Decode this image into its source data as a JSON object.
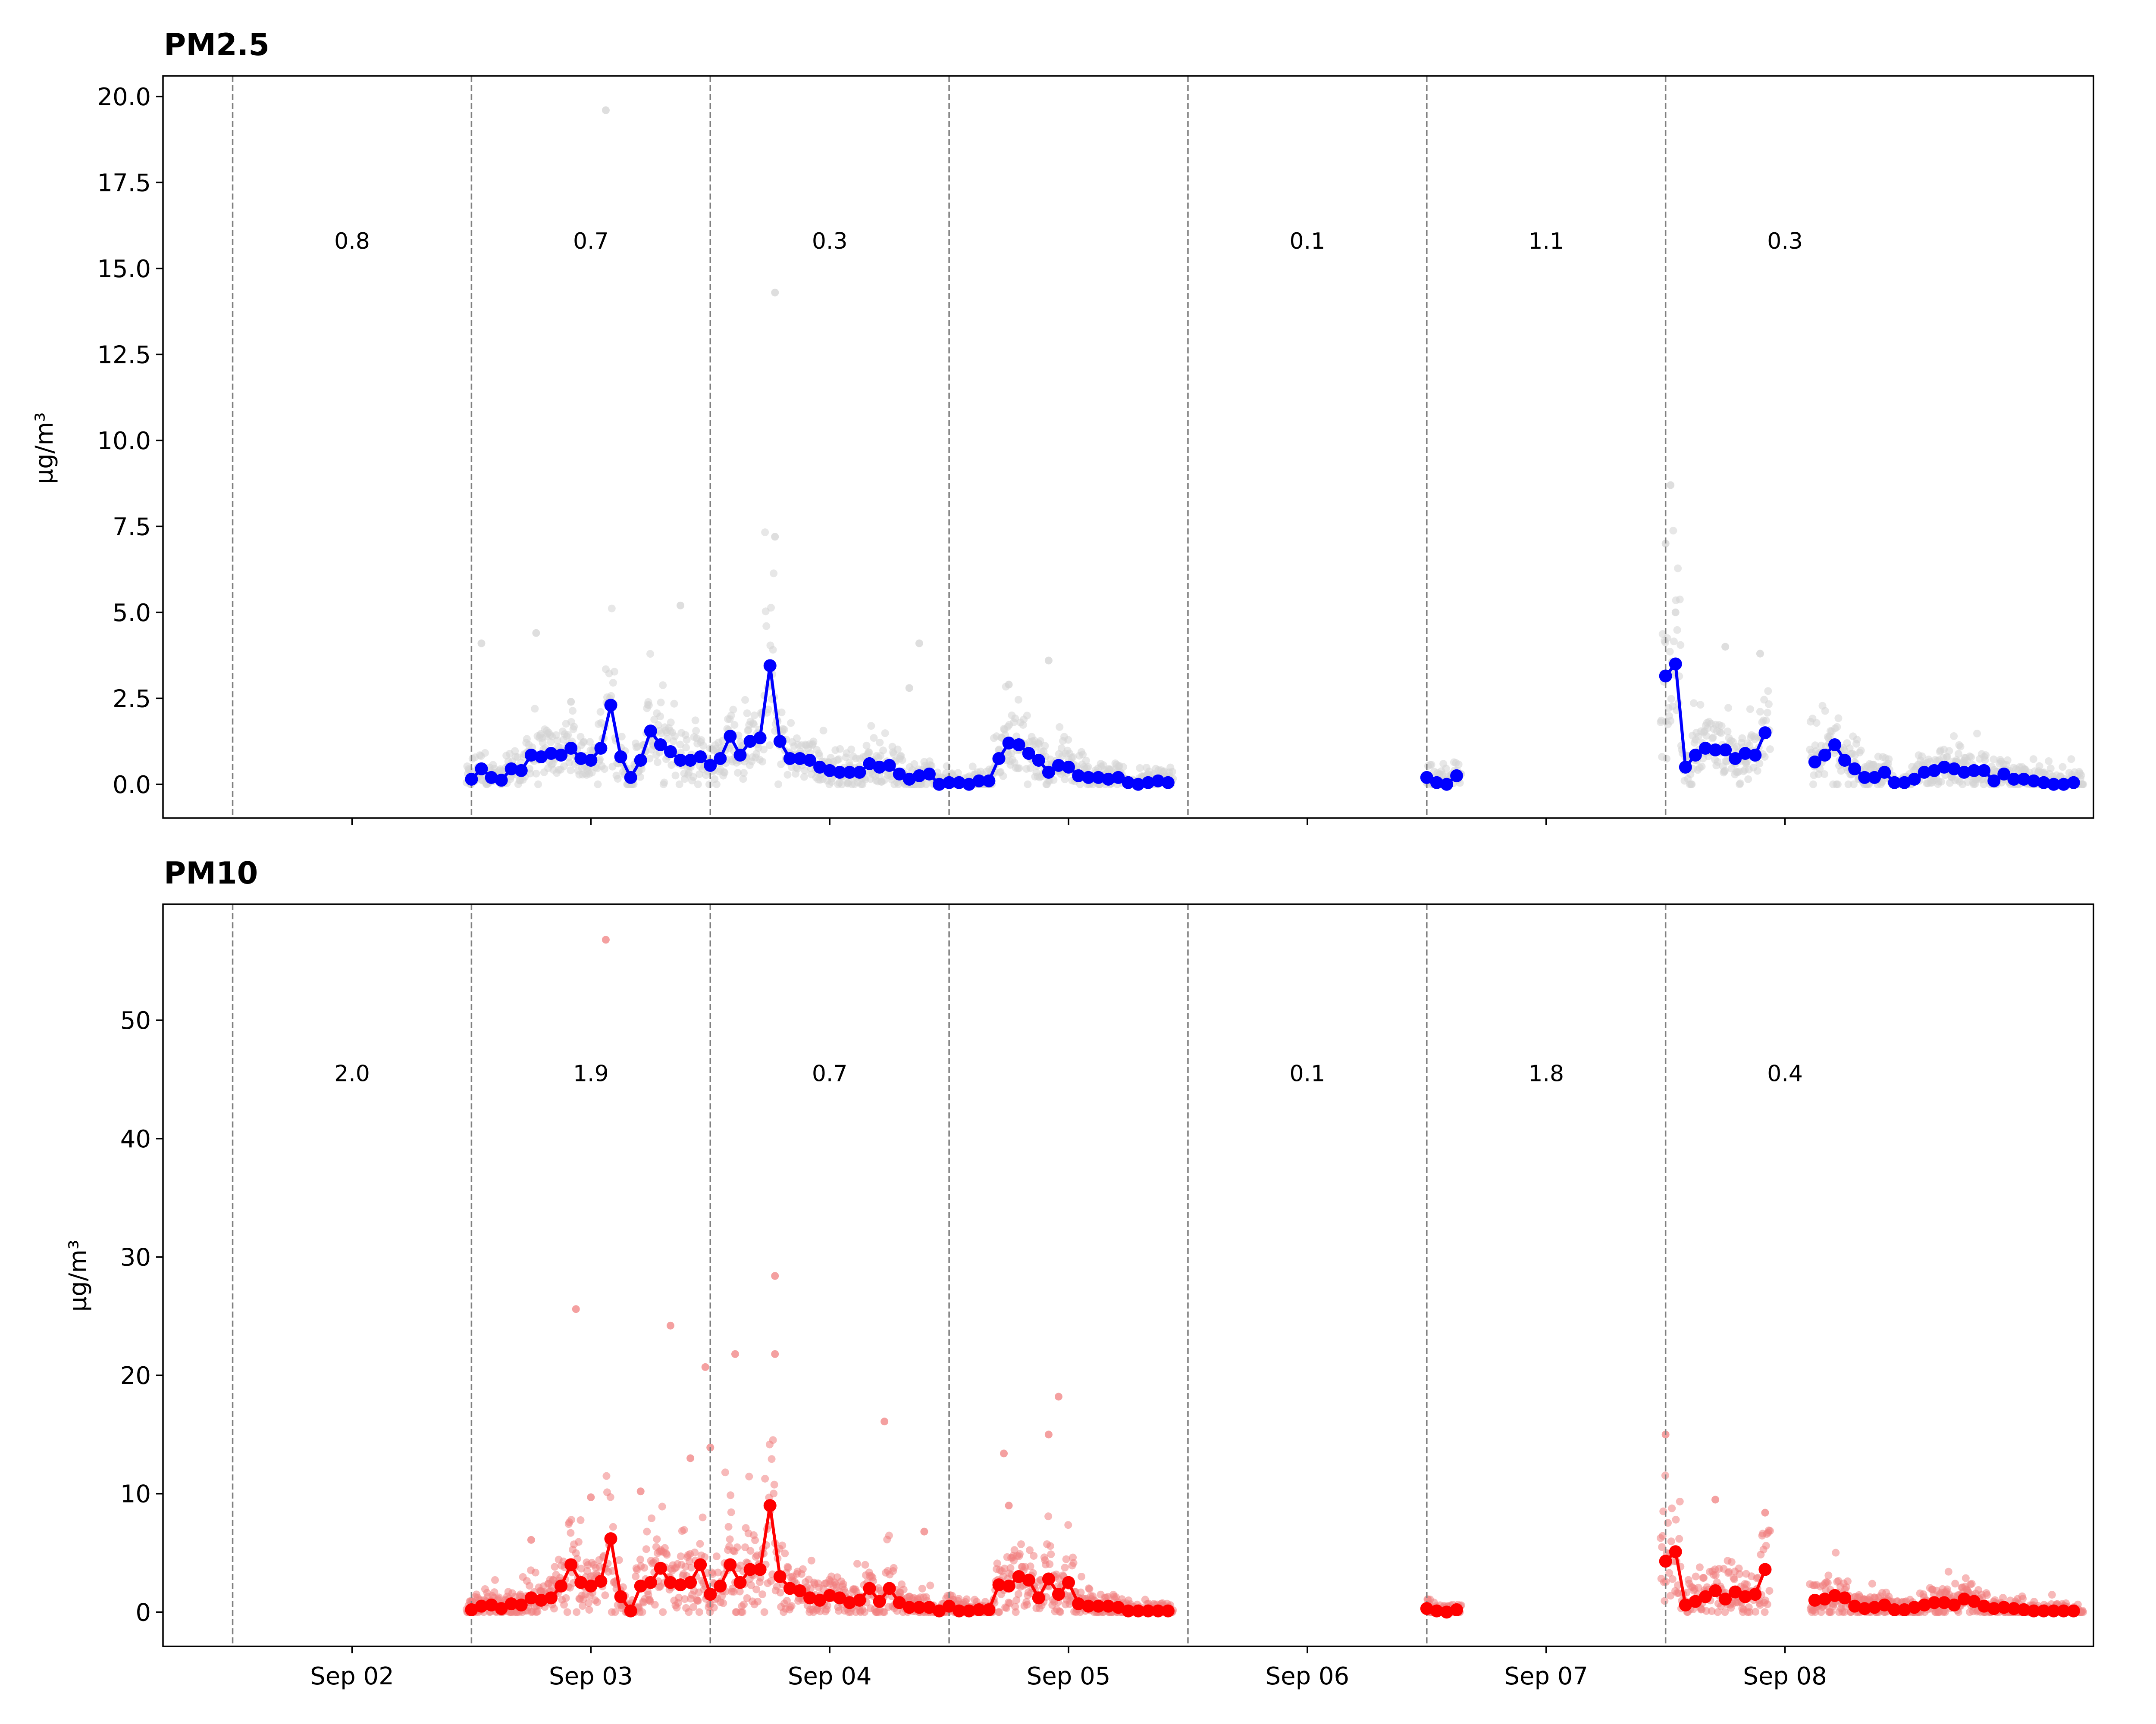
{
  "chart_data": [
    {
      "type": "line",
      "title": "PM2.5",
      "ylabel": "µg/m³",
      "ylim": [
        -0.98,
        20.6
      ],
      "yticks": [
        "0.0",
        "2.5",
        "5.0",
        "7.5",
        "10.0",
        "12.5",
        "15.0",
        "17.5",
        "20.0"
      ],
      "xlim": [
        "2023-09-01 05:00",
        "2023-09-08 23:00"
      ],
      "x_unit": "hour of day from Sep 01 00:00",
      "xticks": [
        "Sep 02",
        "Sep 03",
        "Sep 04",
        "Sep 05",
        "Sep 06",
        "Sep 07",
        "Sep 08"
      ],
      "day_boundaries": [
        "Sep 01 12:00",
        "Sep 02 12:00",
        "Sep 03 12:00",
        "Sep 04 12:00",
        "Sep 05 12:00",
        "Sep 06 12:00",
        "Sep 07 12:00"
      ],
      "daily_means": [
        {
          "at": "Sep 02",
          "label": "0.8"
        },
        {
          "at": "Sep 03",
          "label": "0.7"
        },
        {
          "at": "Sep 04",
          "label": "0.3"
        },
        {
          "at": "Sep 06",
          "label": "0.1"
        },
        {
          "at": "Sep 07",
          "label": "1.1"
        },
        {
          "at": "Sep 08",
          "label": "0.3"
        }
      ],
      "annotation_y": 15.8,
      "line_color": "#0000ff",
      "scatter_color": "#d3d3d3",
      "hourly": [
        [
          36,
          0.15
        ],
        [
          37,
          0.45
        ],
        [
          38,
          0.2
        ],
        [
          39,
          0.12
        ],
        [
          40,
          0.45
        ],
        [
          41,
          0.4
        ],
        [
          42,
          0.85
        ],
        [
          43,
          0.8
        ],
        [
          44,
          0.9
        ],
        [
          45,
          0.85
        ],
        [
          46,
          1.05
        ],
        [
          47,
          0.75
        ],
        [
          48,
          0.7
        ],
        [
          49,
          1.05
        ],
        [
          50,
          2.3
        ],
        [
          51,
          0.8
        ],
        [
          52,
          0.2
        ],
        [
          53,
          0.7
        ],
        [
          54,
          1.55
        ],
        [
          55,
          1.15
        ],
        [
          56,
          0.95
        ],
        [
          57,
          0.7
        ],
        [
          58,
          0.7
        ],
        [
          59,
          0.8
        ],
        [
          60,
          0.55
        ],
        [
          61,
          0.75
        ],
        [
          62,
          1.4
        ],
        [
          63,
          0.85
        ],
        [
          64,
          1.25
        ],
        [
          65,
          1.35
        ],
        [
          66,
          3.45
        ],
        [
          67,
          1.25
        ],
        [
          68,
          0.75
        ],
        [
          69,
          0.75
        ],
        [
          70,
          0.7
        ],
        [
          71,
          0.5
        ],
        [
          72,
          0.4
        ],
        [
          73,
          0.35
        ],
        [
          74,
          0.35
        ],
        [
          75,
          0.35
        ],
        [
          76,
          0.6
        ],
        [
          77,
          0.5
        ],
        [
          78,
          0.55
        ],
        [
          79,
          0.3
        ],
        [
          80,
          0.15
        ],
        [
          81,
          0.25
        ],
        [
          82,
          0.3
        ],
        [
          83,
          0.0
        ],
        [
          84,
          0.05
        ],
        [
          85,
          0.05
        ],
        [
          86,
          0.0
        ],
        [
          87,
          0.1
        ],
        [
          88,
          0.1
        ],
        [
          89,
          0.75
        ],
        [
          90,
          1.2
        ],
        [
          91,
          1.15
        ],
        [
          92,
          0.9
        ],
        [
          93,
          0.7
        ],
        [
          94,
          0.35
        ],
        [
          95,
          0.55
        ],
        [
          96,
          0.5
        ],
        [
          97,
          0.25
        ],
        [
          98,
          0.2
        ],
        [
          99,
          0.2
        ],
        [
          100,
          0.15
        ],
        [
          101,
          0.2
        ],
        [
          102,
          0.05
        ],
        [
          103,
          0.0
        ],
        [
          104,
          0.05
        ],
        [
          105,
          0.1
        ],
        [
          106,
          0.05
        ],
        null,
        [
          132,
          0.2
        ],
        [
          133,
          0.05
        ],
        [
          134,
          0.0
        ],
        [
          135,
          0.25
        ],
        null,
        [
          156,
          3.15
        ],
        [
          157,
          3.5
        ],
        [
          158,
          0.5
        ],
        [
          159,
          0.85
        ],
        [
          160,
          1.05
        ],
        [
          161,
          1.0
        ],
        [
          162,
          1.0
        ],
        [
          163,
          0.75
        ],
        [
          164,
          0.9
        ],
        [
          165,
          0.85
        ],
        [
          166,
          1.5
        ],
        null,
        [
          171,
          0.65
        ],
        [
          172,
          0.85
        ],
        [
          173,
          1.15
        ],
        [
          174,
          0.7
        ],
        [
          175,
          0.45
        ],
        [
          176,
          0.2
        ],
        [
          177,
          0.2
        ],
        [
          178,
          0.35
        ],
        [
          179,
          0.05
        ],
        [
          180,
          0.05
        ],
        [
          181,
          0.15
        ],
        [
          182,
          0.35
        ],
        [
          183,
          0.4
        ],
        [
          184,
          0.5
        ],
        [
          185,
          0.45
        ],
        [
          186,
          0.35
        ],
        [
          187,
          0.4
        ],
        [
          188,
          0.4
        ],
        [
          189,
          0.1
        ],
        [
          190,
          0.3
        ],
        [
          191,
          0.15
        ],
        [
          192,
          0.15
        ],
        [
          193,
          0.1
        ],
        [
          194,
          0.05
        ],
        [
          195,
          0.0
        ],
        [
          196,
          0.0
        ],
        [
          197,
          0.05
        ]
      ],
      "scatter_peaks": [
        [
          49.5,
          19.6
        ],
        [
          66.5,
          14.3
        ],
        [
          66.5,
          7.2
        ],
        [
          57,
          5.2
        ],
        [
          42.5,
          4.4
        ],
        [
          37,
          4.1
        ],
        [
          81,
          4.1
        ],
        [
          156.5,
          8.7
        ],
        [
          156,
          7.0
        ],
        [
          157,
          5.0
        ],
        [
          94,
          3.6
        ],
        [
          162,
          4.0
        ],
        [
          165.5,
          3.8
        ],
        [
          90,
          2.9
        ],
        [
          46,
          2.4
        ],
        [
          80,
          2.8
        ]
      ],
      "scatter_spread": {
        "segments": [
          [
            35.5,
            106.5
          ],
          [
            132,
            135.5
          ],
          [
            155.5,
            166.5
          ],
          [
            170.5,
            198
          ]
        ],
        "per_hour": 15,
        "jitter_scale": 1.4,
        "floor": 0
      }
    },
    {
      "type": "line",
      "title": "PM10",
      "ylabel": "µg/m³",
      "ylim": [
        -2.9,
        59.8
      ],
      "yticks": [
        "0",
        "10",
        "20",
        "30",
        "40",
        "50"
      ],
      "xlim": [
        "2023-09-01 05:00",
        "2023-09-08 23:00"
      ],
      "x_unit": "hour of day from Sep 01 00:00",
      "xticks": [
        "Sep 02",
        "Sep 03",
        "Sep 04",
        "Sep 05",
        "Sep 06",
        "Sep 07",
        "Sep 08"
      ],
      "day_boundaries": [
        "Sep 01 12:00",
        "Sep 02 12:00",
        "Sep 03 12:00",
        "Sep 04 12:00",
        "Sep 05 12:00",
        "Sep 06 12:00",
        "Sep 07 12:00"
      ],
      "daily_means": [
        {
          "at": "Sep 02",
          "label": "2.0"
        },
        {
          "at": "Sep 03",
          "label": "1.9"
        },
        {
          "at": "Sep 04",
          "label": "0.7"
        },
        {
          "at": "Sep 06",
          "label": "0.1"
        },
        {
          "at": "Sep 07",
          "label": "1.8"
        },
        {
          "at": "Sep 08",
          "label": "0.4"
        }
      ],
      "annotation_y": 45.5,
      "line_color": "#ff0000",
      "scatter_color": "#f08080",
      "hourly": [
        [
          36,
          0.2
        ],
        [
          37,
          0.5
        ],
        [
          38,
          0.6
        ],
        [
          39,
          0.3
        ],
        [
          40,
          0.7
        ],
        [
          41,
          0.6
        ],
        [
          42,
          1.2
        ],
        [
          43,
          1.0
        ],
        [
          44,
          1.2
        ],
        [
          45,
          2.2
        ],
        [
          46,
          4.0
        ],
        [
          47,
          2.5
        ],
        [
          48,
          2.2
        ],
        [
          49,
          2.6
        ],
        [
          50,
          6.2
        ],
        [
          51,
          1.3
        ],
        [
          52,
          0.1
        ],
        [
          53,
          2.2
        ],
        [
          54,
          2.5
        ],
        [
          55,
          3.7
        ],
        [
          56,
          2.5
        ],
        [
          57,
          2.3
        ],
        [
          58,
          2.5
        ],
        [
          59,
          4.0
        ],
        [
          60,
          1.5
        ],
        [
          61,
          2.2
        ],
        [
          62,
          4.0
        ],
        [
          63,
          2.5
        ],
        [
          64,
          3.6
        ],
        [
          65,
          3.6
        ],
        [
          66,
          9.0
        ],
        [
          67,
          3.0
        ],
        [
          68,
          2.0
        ],
        [
          69,
          1.8
        ],
        [
          70,
          1.2
        ],
        [
          71,
          1.0
        ],
        [
          72,
          1.4
        ],
        [
          73,
          1.2
        ],
        [
          74,
          0.8
        ],
        [
          75,
          1.0
        ],
        [
          76,
          2.0
        ],
        [
          77,
          0.9
        ],
        [
          78,
          2.0
        ],
        [
          79,
          0.8
        ],
        [
          80,
          0.4
        ],
        [
          81,
          0.4
        ],
        [
          82,
          0.4
        ],
        [
          83,
          0.1
        ],
        [
          84,
          0.5
        ],
        [
          85,
          0.1
        ],
        [
          86,
          0.1
        ],
        [
          87,
          0.2
        ],
        [
          88,
          0.2
        ],
        [
          89,
          2.3
        ],
        [
          90,
          2.2
        ],
        [
          91,
          3.0
        ],
        [
          92,
          2.7
        ],
        [
          93,
          1.2
        ],
        [
          94,
          2.8
        ],
        [
          95,
          1.5
        ],
        [
          96,
          2.5
        ],
        [
          97,
          0.7
        ],
        [
          98,
          0.5
        ],
        [
          99,
          0.5
        ],
        [
          100,
          0.5
        ],
        [
          101,
          0.4
        ],
        [
          102,
          0.1
        ],
        [
          103,
          0.1
        ],
        [
          104,
          0.1
        ],
        [
          105,
          0.1
        ],
        [
          106,
          0.1
        ],
        null,
        [
          132,
          0.3
        ],
        [
          133,
          0.1
        ],
        [
          134,
          0.0
        ],
        [
          135,
          0.2
        ],
        null,
        [
          156,
          4.3
        ],
        [
          157,
          5.1
        ],
        [
          158,
          0.6
        ],
        [
          159,
          0.9
        ],
        [
          160,
          1.3
        ],
        [
          161,
          1.8
        ],
        [
          162,
          1.1
        ],
        [
          163,
          1.7
        ],
        [
          164,
          1.3
        ],
        [
          165,
          1.5
        ],
        [
          166,
          3.6
        ],
        null,
        [
          171,
          1.0
        ],
        [
          172,
          1.1
        ],
        [
          173,
          1.4
        ],
        [
          174,
          1.2
        ],
        [
          175,
          0.5
        ],
        [
          176,
          0.3
        ],
        [
          177,
          0.4
        ],
        [
          178,
          0.6
        ],
        [
          179,
          0.2
        ],
        [
          180,
          0.2
        ],
        [
          181,
          0.4
        ],
        [
          182,
          0.6
        ],
        [
          183,
          0.8
        ],
        [
          184,
          0.8
        ],
        [
          185,
          0.6
        ],
        [
          186,
          1.1
        ],
        [
          187,
          0.9
        ],
        [
          188,
          0.5
        ],
        [
          189,
          0.3
        ],
        [
          190,
          0.4
        ],
        [
          191,
          0.3
        ],
        [
          192,
          0.2
        ],
        [
          193,
          0.1
        ],
        [
          194,
          0.1
        ],
        [
          195,
          0.1
        ],
        [
          196,
          0.1
        ],
        [
          197,
          0.1
        ]
      ],
      "scatter_peaks": [
        [
          49.5,
          56.8
        ],
        [
          46.5,
          25.6
        ],
        [
          56,
          24.2
        ],
        [
          59.5,
          20.7
        ],
        [
          66.5,
          28.4
        ],
        [
          66.5,
          21.8
        ],
        [
          62.5,
          21.8
        ],
        [
          77.5,
          16.1
        ],
        [
          95,
          18.2
        ],
        [
          94,
          15.0
        ],
        [
          89.5,
          13.4
        ],
        [
          90,
          9.0
        ],
        [
          156,
          15.0
        ],
        [
          161,
          9.5
        ],
        [
          166,
          8.4
        ],
        [
          58,
          13.0
        ],
        [
          60,
          13.9
        ],
        [
          53,
          10.2
        ],
        [
          48,
          9.7
        ],
        [
          42,
          6.1
        ],
        [
          81.5,
          6.8
        ]
      ],
      "scatter_spread": {
        "segments": [
          [
            35.5,
            106.5
          ],
          [
            132,
            135.5
          ],
          [
            155.5,
            166.5
          ],
          [
            170.5,
            198
          ]
        ],
        "per_hour": 15,
        "jitter_scale": 2.6,
        "floor": 0
      }
    }
  ]
}
